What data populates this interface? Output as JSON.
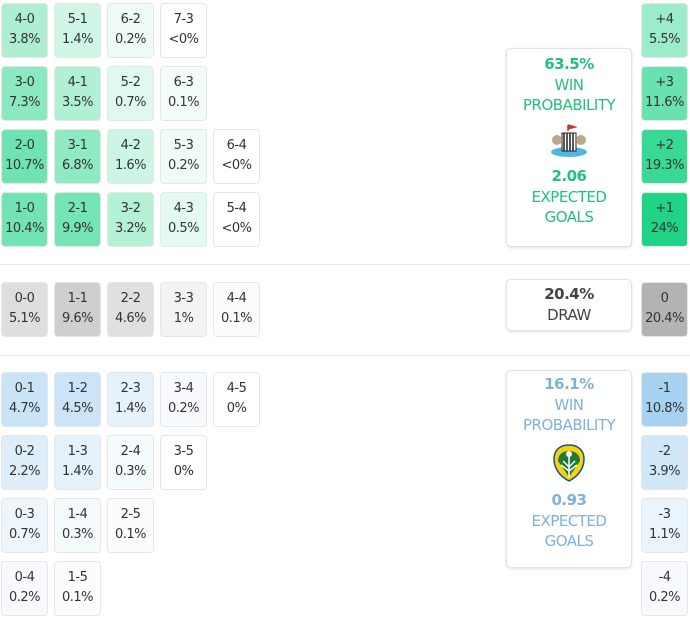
{
  "colors": {
    "home": "#1fd487",
    "draw": "#b3b3b3",
    "away": "#a8d2f2",
    "home_text": "#22c07c",
    "away_text": "#7fb2d6",
    "draw_text": "#444444"
  },
  "home": {
    "grid": [
      [
        {
          "score": "4-0",
          "pct": "3.8%"
        },
        {
          "score": "5-1",
          "pct": "1.4%"
        },
        {
          "score": "6-2",
          "pct": "0.2%"
        },
        {
          "score": "7-3",
          "pct": "<0%"
        }
      ],
      [
        {
          "score": "3-0",
          "pct": "7.3%"
        },
        {
          "score": "4-1",
          "pct": "3.5%"
        },
        {
          "score": "5-2",
          "pct": "0.7%"
        },
        {
          "score": "6-3",
          "pct": "0.1%"
        }
      ],
      [
        {
          "score": "2-0",
          "pct": "10.7%"
        },
        {
          "score": "3-1",
          "pct": "6.8%"
        },
        {
          "score": "4-2",
          "pct": "1.6%"
        },
        {
          "score": "5-3",
          "pct": "0.2%"
        },
        {
          "score": "6-4",
          "pct": "<0%"
        }
      ],
      [
        {
          "score": "1-0",
          "pct": "10.4%"
        },
        {
          "score": "2-1",
          "pct": "9.9%"
        },
        {
          "score": "3-2",
          "pct": "3.2%"
        },
        {
          "score": "4-3",
          "pct": "0.5%"
        },
        {
          "score": "5-4",
          "pct": "<0%"
        }
      ]
    ],
    "margins": [
      {
        "margin": "+4",
        "pct": "5.5%"
      },
      {
        "margin": "+3",
        "pct": "11.6%"
      },
      {
        "margin": "+2",
        "pct": "19.3%"
      },
      {
        "margin": "+1",
        "pct": "24%"
      }
    ],
    "win_probability": "63.5%",
    "win_label": "WIN PROBABILITY",
    "expected_goals": "2.06",
    "xg_label": "EXPECTED GOALS",
    "crest_icon": "newcastle-crest-icon"
  },
  "draw": {
    "grid": [
      [
        {
          "score": "0-0",
          "pct": "5.1%"
        },
        {
          "score": "1-1",
          "pct": "9.6%"
        },
        {
          "score": "2-2",
          "pct": "4.6%"
        },
        {
          "score": "3-3",
          "pct": "1%"
        },
        {
          "score": "4-4",
          "pct": "0.1%"
        }
      ]
    ],
    "margins": [
      {
        "margin": "0",
        "pct": "20.4%"
      }
    ],
    "probability": "20.4%",
    "label": "DRAW"
  },
  "away": {
    "grid": [
      [
        {
          "score": "0-1",
          "pct": "4.7%"
        },
        {
          "score": "1-2",
          "pct": "4.5%"
        },
        {
          "score": "2-3",
          "pct": "1.4%"
        },
        {
          "score": "3-4",
          "pct": "0.2%"
        },
        {
          "score": "4-5",
          "pct": "0%"
        }
      ],
      [
        {
          "score": "0-2",
          "pct": "2.2%"
        },
        {
          "score": "1-3",
          "pct": "1.4%"
        },
        {
          "score": "2-4",
          "pct": "0.3%"
        },
        {
          "score": "3-5",
          "pct": "0%"
        }
      ],
      [
        {
          "score": "0-3",
          "pct": "0.7%"
        },
        {
          "score": "1-4",
          "pct": "0.3%"
        },
        {
          "score": "2-5",
          "pct": "0.1%"
        }
      ],
      [
        {
          "score": "0-4",
          "pct": "0.2%"
        },
        {
          "score": "1-5",
          "pct": "0.1%"
        }
      ]
    ],
    "margins": [
      {
        "margin": "-1",
        "pct": "10.8%"
      },
      {
        "margin": "-2",
        "pct": "3.9%"
      },
      {
        "margin": "-3",
        "pct": "1.1%"
      },
      {
        "margin": "-4",
        "pct": "0.2%"
      }
    ],
    "win_probability": "16.1%",
    "win_label": "WIN PROBABILITY",
    "expected_goals": "0.93",
    "xg_label": "EXPECTED GOALS",
    "crest_icon": "leeds-crest-icon"
  }
}
